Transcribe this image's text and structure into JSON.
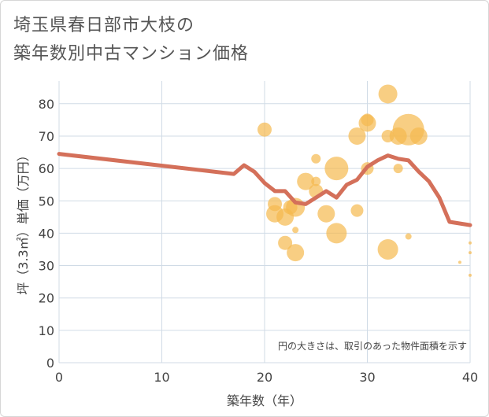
{
  "title_line1": "埼玉県春日部市大枝の",
  "title_line2": "築年数別中古マンション価格",
  "chart_data": {
    "type": "scatter",
    "xlabel": "築年数（年）",
    "ylabel": "坪（3.3㎡）単価（万円）",
    "xlim": [
      0,
      40
    ],
    "ylim": [
      0,
      87
    ],
    "xticks": [
      0,
      10,
      20,
      30,
      40
    ],
    "yticks": [
      0,
      10,
      20,
      30,
      40,
      50,
      60,
      70,
      80
    ],
    "grid": true,
    "note": "円の大きさは、取引のあった物件面積を示す",
    "colors": {
      "bubble": "#f5b94e",
      "line": "#d4705a",
      "grid": "#d0dbe6"
    },
    "bubbles": [
      {
        "x": 20,
        "y": 72,
        "r": 9
      },
      {
        "x": 21,
        "y": 49,
        "r": 9
      },
      {
        "x": 21,
        "y": 46,
        "r": 11
      },
      {
        "x": 22,
        "y": 45,
        "r": 11
      },
      {
        "x": 22,
        "y": 37,
        "r": 9
      },
      {
        "x": 22.5,
        "y": 48,
        "r": 9
      },
      {
        "x": 23,
        "y": 48,
        "r": 12
      },
      {
        "x": 23,
        "y": 41,
        "r": 4
      },
      {
        "x": 23,
        "y": 34,
        "r": 11
      },
      {
        "x": 24,
        "y": 56,
        "r": 11
      },
      {
        "x": 25,
        "y": 63,
        "r": 6
      },
      {
        "x": 25,
        "y": 56,
        "r": 6
      },
      {
        "x": 25,
        "y": 53,
        "r": 9
      },
      {
        "x": 26,
        "y": 46,
        "r": 11
      },
      {
        "x": 27,
        "y": 60,
        "r": 15
      },
      {
        "x": 27,
        "y": 40,
        "r": 13
      },
      {
        "x": 29,
        "y": 70,
        "r": 11
      },
      {
        "x": 29,
        "y": 47,
        "r": 8
      },
      {
        "x": 30,
        "y": 74,
        "r": 11
      },
      {
        "x": 30,
        "y": 75,
        "r": 8
      },
      {
        "x": 30,
        "y": 60,
        "r": 8
      },
      {
        "x": 32,
        "y": 83,
        "r": 12
      },
      {
        "x": 32,
        "y": 70,
        "r": 8
      },
      {
        "x": 32,
        "y": 35,
        "r": 13
      },
      {
        "x": 33,
        "y": 70,
        "r": 11
      },
      {
        "x": 33,
        "y": 60,
        "r": 6
      },
      {
        "x": 34,
        "y": 72,
        "r": 20
      },
      {
        "x": 34,
        "y": 39,
        "r": 4
      },
      {
        "x": 35,
        "y": 70,
        "r": 11
      },
      {
        "x": 39,
        "y": 31,
        "r": 2
      },
      {
        "x": 40,
        "y": 37,
        "r": 2
      },
      {
        "x": 40,
        "y": 34,
        "r": 2
      },
      {
        "x": 40,
        "y": 27,
        "r": 2
      }
    ],
    "trend_line": {
      "x": [
        0,
        17,
        18,
        19,
        20,
        21,
        22,
        23,
        24,
        25,
        26,
        27,
        28,
        29,
        30,
        31,
        32,
        33,
        34,
        35,
        36,
        37,
        38,
        40
      ],
      "y": [
        64.5,
        58.3,
        61,
        59,
        55.5,
        53,
        53,
        49.5,
        49,
        51,
        53,
        51,
        55,
        56.5,
        60.5,
        62.5,
        64,
        63,
        62.5,
        59,
        56,
        51,
        43.5,
        42.5
      ]
    }
  }
}
